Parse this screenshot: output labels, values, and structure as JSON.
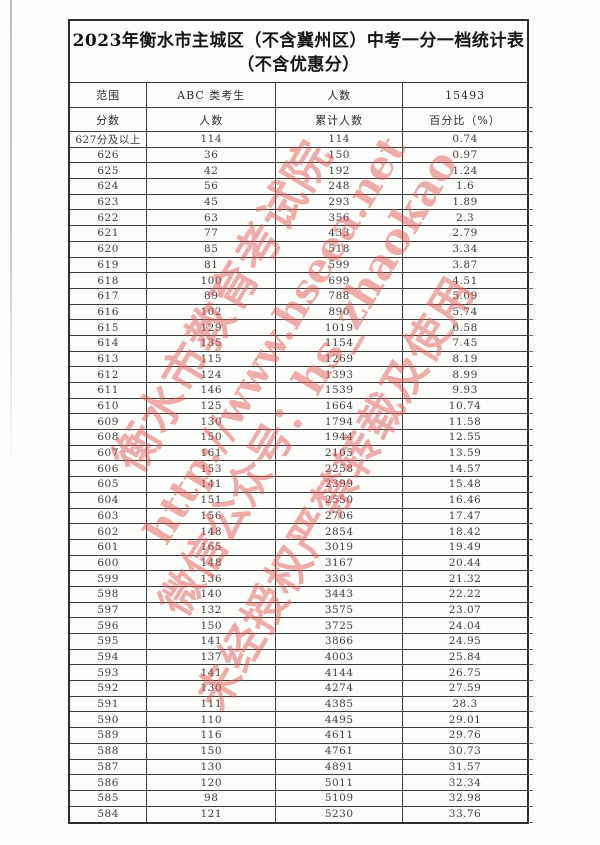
{
  "document": {
    "title_line1": "2023年衡水市主城区（不含冀州区）中考一分一档统计表",
    "title_line2": "（不含优惠分）"
  },
  "summary": {
    "range_label": "范围",
    "range_value": "ABC 类考生",
    "count_label": "人数",
    "count_value": "15493"
  },
  "table": {
    "columns": [
      "分数",
      "人数",
      "累计人数",
      "百分比（%）"
    ],
    "rows": [
      [
        "627分及以上",
        "114",
        "114",
        "0.74"
      ],
      [
        "626",
        "36",
        "150",
        "0.97"
      ],
      [
        "625",
        "42",
        "192",
        "1.24"
      ],
      [
        "624",
        "56",
        "248",
        "1.6"
      ],
      [
        "623",
        "45",
        "293",
        "1.89"
      ],
      [
        "622",
        "63",
        "356",
        "2.3"
      ],
      [
        "621",
        "77",
        "433",
        "2.79"
      ],
      [
        "620",
        "85",
        "518",
        "3.34"
      ],
      [
        "619",
        "81",
        "599",
        "3.87"
      ],
      [
        "618",
        "100",
        "699",
        "4.51"
      ],
      [
        "617",
        "89",
        "788",
        "5.09"
      ],
      [
        "616",
        "102",
        "890",
        "5.74"
      ],
      [
        "615",
        "129",
        "1019",
        "6.58"
      ],
      [
        "614",
        "135",
        "1154",
        "7.45"
      ],
      [
        "613",
        "115",
        "1269",
        "8.19"
      ],
      [
        "612",
        "124",
        "1393",
        "8.99"
      ],
      [
        "611",
        "146",
        "1539",
        "9.93"
      ],
      [
        "610",
        "125",
        "1664",
        "10.74"
      ],
      [
        "609",
        "130",
        "1794",
        "11.58"
      ],
      [
        "608",
        "150",
        "1944",
        "12.55"
      ],
      [
        "607",
        "161",
        "2105",
        "13.59"
      ],
      [
        "606",
        "153",
        "2258",
        "14.57"
      ],
      [
        "605",
        "141",
        "2399",
        "15.48"
      ],
      [
        "604",
        "151",
        "2550",
        "16.46"
      ],
      [
        "603",
        "156",
        "2706",
        "17.47"
      ],
      [
        "602",
        "148",
        "2854",
        "18.42"
      ],
      [
        "601",
        "165",
        "3019",
        "19.49"
      ],
      [
        "600",
        "148",
        "3167",
        "20.44"
      ],
      [
        "599",
        "136",
        "3303",
        "21.32"
      ],
      [
        "598",
        "140",
        "3443",
        "22.22"
      ],
      [
        "597",
        "132",
        "3575",
        "23.07"
      ],
      [
        "596",
        "150",
        "3725",
        "24.04"
      ],
      [
        "595",
        "141",
        "3866",
        "24.95"
      ],
      [
        "594",
        "137",
        "4003",
        "25.84"
      ],
      [
        "593",
        "141",
        "4144",
        "26.75"
      ],
      [
        "592",
        "130",
        "4274",
        "27.59"
      ],
      [
        "591",
        "111",
        "4385",
        "28.3"
      ],
      [
        "590",
        "110",
        "4495",
        "29.01"
      ],
      [
        "589",
        "116",
        "4611",
        "29.76"
      ],
      [
        "588",
        "150",
        "4761",
        "30.73"
      ],
      [
        "587",
        "130",
        "4891",
        "31.57"
      ],
      [
        "586",
        "120",
        "5011",
        "32.34"
      ],
      [
        "585",
        "98",
        "5109",
        "32.98"
      ],
      [
        "584",
        "121",
        "5230",
        "33.76"
      ]
    ]
  },
  "watermark": {
    "color": "#de5c55",
    "lines": [
      "衡水市教育考试院",
      "http://www.hseea.net",
      "微信公众号：hs_zhaokao",
      "未经授权严禁转载及使用"
    ]
  }
}
